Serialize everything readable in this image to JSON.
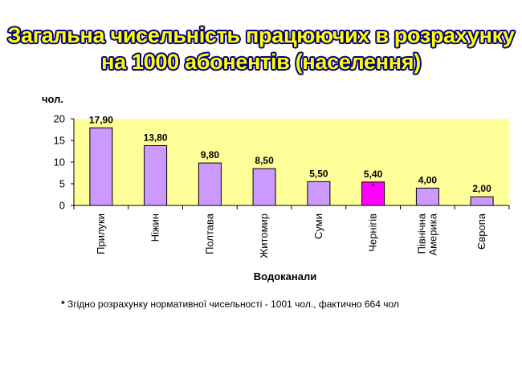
{
  "title_lines": [
    "Загальна чисельність працюючих в розрахунку",
    "на 1000 абонентів (населення)"
  ],
  "footnote": {
    "star": "*",
    "text": " Згідно розрахунку нормативної чисельності - 1001 чол., фактично 664 чол"
  },
  "colors": {
    "plot_background": "#ffff99",
    "bar": "#cc99ff",
    "bar_highlight": "#ff00ff",
    "bar_outline": "#000000",
    "title_fill": "#ffff00",
    "title_outline": "#000080"
  },
  "chart_data": {
    "type": "bar",
    "ylabel": "чол.",
    "xlabel": "Водоканали",
    "ylim": [
      0,
      20
    ],
    "yticks": [
      0,
      5,
      10,
      15,
      20
    ],
    "grid": false,
    "categories": [
      "Прилуки",
      "Ніжин",
      "Полтава",
      "Житомир",
      "Суми",
      "Чернігів",
      "Північна Америка",
      "Європа"
    ],
    "values": [
      17.9,
      13.8,
      9.8,
      8.5,
      5.5,
      5.4,
      4.0,
      2.0
    ],
    "value_labels": [
      "17,90",
      "13,80",
      "9,80",
      "8,50",
      "5,50",
      "5,40",
      "4,00",
      "2,00"
    ],
    "highlighted_category": "Чернігів",
    "annotations": [
      {
        "category": "Чернігів",
        "text": "*"
      }
    ]
  }
}
